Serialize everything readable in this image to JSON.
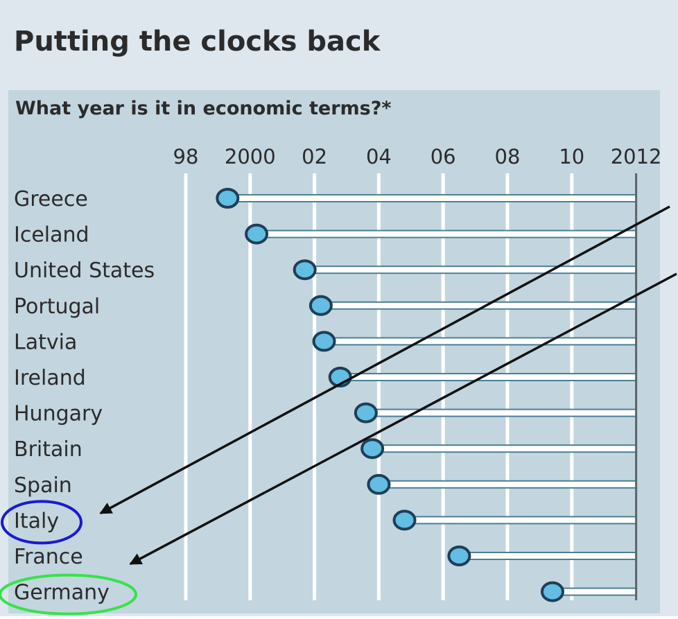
{
  "title": "Putting the clocks back",
  "subtitle": "What year is it in economic terms?*",
  "colors": {
    "frame": "#dde7ed",
    "plot_bg": "#c3d5df",
    "gridline": "#ffffff",
    "bar": "#ffffff",
    "bar_edge": "#4b7f95",
    "dot_fill": "#64bde2",
    "dot_edge": "#1d3f57",
    "text": "#2b2b2b",
    "end_line": "#5a646b",
    "arrow": "#111111",
    "circle_italy": "#1a1ad0",
    "circle_germany": "#37e24a"
  },
  "chart_data": {
    "type": "dot",
    "title": "Putting the clocks back",
    "subtitle": "What year is it in economic terms?*",
    "xlim": [
      1997.5,
      2012.4
    ],
    "x_ticks": [
      1998,
      2000,
      2002,
      2004,
      2006,
      2008,
      2010,
      2012
    ],
    "x_tick_labels": [
      "98",
      "2000",
      "02",
      "04",
      "06",
      "08",
      "10",
      "2012"
    ],
    "reference_year": 2012,
    "grid": true,
    "categories": [
      "Greece",
      "Iceland",
      "United States",
      "Portugal",
      "Latvia",
      "Ireland",
      "Hungary",
      "Britain",
      "Spain",
      "Italy",
      "France",
      "Germany"
    ],
    "values": [
      1999.3,
      2000.2,
      2001.7,
      2002.2,
      2002.3,
      2002.8,
      2003.6,
      2003.8,
      2004.0,
      2004.8,
      2006.5,
      2009.4
    ],
    "annotations": [
      {
        "type": "ellipse",
        "target": "Italy",
        "color": "blue"
      },
      {
        "type": "ellipse",
        "target": "Germany",
        "color": "green"
      },
      {
        "type": "arrow",
        "target": "Italy"
      },
      {
        "type": "arrow",
        "target": "Germany"
      }
    ]
  }
}
